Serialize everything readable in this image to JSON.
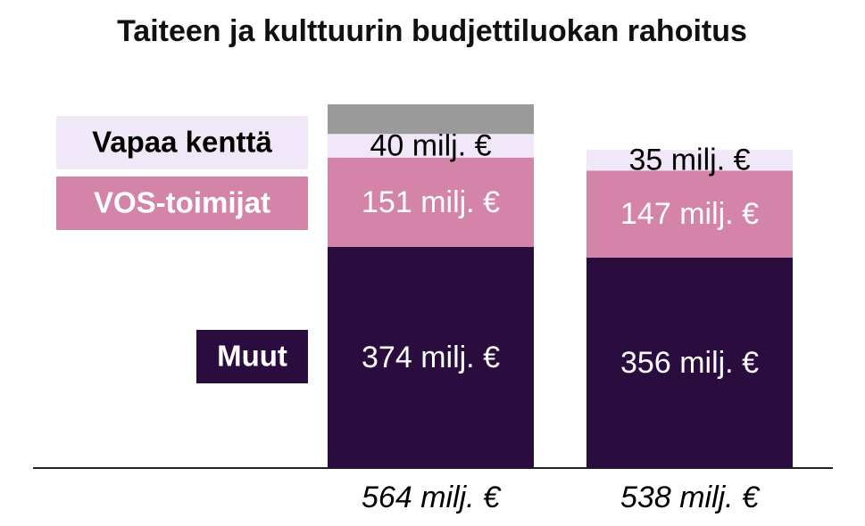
{
  "chart_data": {
    "type": "stacked_bar",
    "title": "Taiteen ja kulttuurin budjettiluokan rahoitus",
    "categories": [
      "564 milj. €",
      "538 milj. €"
    ],
    "ylim": [
      0,
      600
    ],
    "series": [
      {
        "name": "Muut",
        "color": "#2a0c3f",
        "label_color": "#ffffff",
        "values": [
          374,
          356
        ],
        "value_labels": [
          "374 milj. €",
          "356 milj. €"
        ]
      },
      {
        "name": "VOS-toimijat",
        "color": "#d384a8",
        "label_color": "#ffffff",
        "values": [
          151,
          147
        ],
        "value_labels": [
          "151 milj. €",
          "147 milj. €"
        ]
      },
      {
        "name": "Vapaa kenttä",
        "color": "#f0e8f8",
        "label_color": "#000000",
        "values": [
          40,
          35
        ],
        "value_labels": [
          "40 milj. €",
          "35 milj. €"
        ]
      },
      {
        "name": null,
        "color": "#9a9a9a",
        "values": [
          50,
          null
        ]
      }
    ]
  }
}
